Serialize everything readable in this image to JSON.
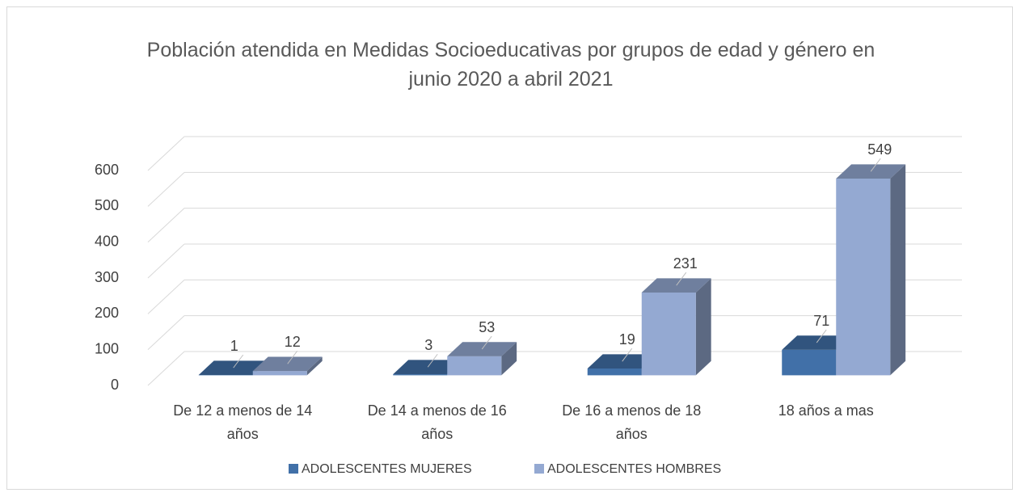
{
  "chart_data": {
    "type": "bar3d",
    "title": "Población atendida en Medidas Socioeducativas por grupos de edad y género en junio 2020 a abril 2021",
    "categories": [
      "De 12 a menos de 14 años",
      "De 14 a menos de 16 años",
      "De 16 a menos de 18 años",
      "18 años a mas"
    ],
    "series": [
      {
        "name": "ADOLESCENTES MUJERES",
        "color": "#4170a8",
        "values": [
          1,
          3,
          19,
          71
        ]
      },
      {
        "name": "ADOLESCENTES HOMBRES",
        "color": "#94a9d2",
        "values": [
          12,
          53,
          231,
          549
        ]
      }
    ],
    "ylim": [
      0,
      600
    ],
    "yticks": [
      0,
      100,
      200,
      300,
      400,
      500,
      600
    ],
    "grid": true,
    "legend": "bottom"
  }
}
